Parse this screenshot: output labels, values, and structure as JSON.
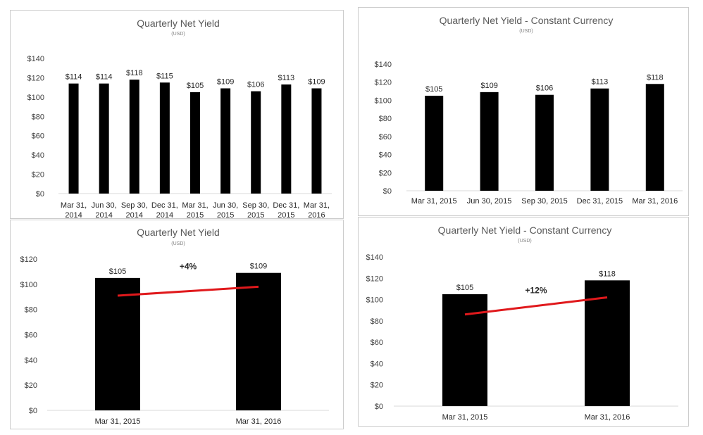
{
  "chart_data": [
    {
      "type": "bar",
      "title": "Quarterly Net Yield",
      "subtitle": "(USD)",
      "categories": [
        [
          "Mar 31,",
          "2014"
        ],
        [
          "Jun 30,",
          "2014"
        ],
        [
          "Sep 30,",
          "2014"
        ],
        [
          "Dec 31,",
          "2014"
        ],
        [
          "Mar 31,",
          "2015"
        ],
        [
          "Jun 30,",
          "2015"
        ],
        [
          "Sep 30,",
          "2015"
        ],
        [
          "Dec 31,",
          "2015"
        ],
        [
          "Mar 31,",
          "2016"
        ]
      ],
      "values": [
        114,
        114,
        118,
        115,
        105,
        109,
        106,
        113,
        109
      ],
      "data_labels": [
        "$114",
        "$114",
        "$118",
        "$115",
        "$105",
        "$109",
        "$106",
        "$113",
        "$109"
      ],
      "yticks": [
        "$0",
        "$20",
        "$40",
        "$60",
        "$80",
        "$100",
        "$120",
        "$140"
      ],
      "ylim": [
        0,
        140
      ],
      "bar_color": "#000000"
    },
    {
      "type": "bar",
      "title": "Quarterly Net Yield - Constant Currency",
      "subtitle": "(USD)",
      "categories": [
        [
          "Mar 31, 2015"
        ],
        [
          "Jun 30, 2015"
        ],
        [
          "Sep 30, 2015"
        ],
        [
          "Dec 31, 2015"
        ],
        [
          "Mar 31, 2016"
        ]
      ],
      "values": [
        105,
        109,
        106,
        113,
        118
      ],
      "data_labels": [
        "$105",
        "$109",
        "$106",
        "$113",
        "$118"
      ],
      "yticks": [
        "$0",
        "$20",
        "$40",
        "$60",
        "$80",
        "$100",
        "$120",
        "$140"
      ],
      "ylim": [
        0,
        140
      ],
      "bar_color": "#000000"
    },
    {
      "type": "bar",
      "title": "Quarterly Net Yield",
      "subtitle": "(USD)",
      "categories": [
        [
          "Mar 31, 2015"
        ],
        [
          "Mar 31, 2016"
        ]
      ],
      "values": [
        105,
        109
      ],
      "data_labels": [
        "$105",
        "$109"
      ],
      "yticks": [
        "$0",
        "$20",
        "$40",
        "$60",
        "$80",
        "$100",
        "$120"
      ],
      "ylim": [
        0,
        120
      ],
      "bar_color": "#000000",
      "trend": {
        "from": 91,
        "to": 98,
        "color": "#e0191c",
        "label": "+4%",
        "label_value": 112
      }
    },
    {
      "type": "bar",
      "title": "Quarterly Net Yield - Constant Currency",
      "subtitle": "(USD)",
      "categories": [
        [
          "Mar 31, 2015"
        ],
        [
          "Mar 31, 2016"
        ]
      ],
      "values": [
        105,
        118
      ],
      "data_labels": [
        "$105",
        "$118"
      ],
      "yticks": [
        "$0",
        "$20",
        "$40",
        "$60",
        "$80",
        "$100",
        "$120",
        "$140"
      ],
      "ylim": [
        0,
        140
      ],
      "bar_color": "#000000",
      "trend": {
        "from": 86,
        "to": 102,
        "color": "#e0191c",
        "label": "+12%",
        "label_value": 106
      }
    }
  ]
}
